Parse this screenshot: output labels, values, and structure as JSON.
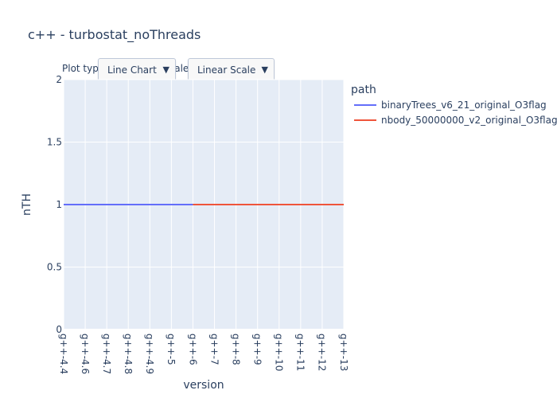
{
  "title": "c++ - turbostat_noThreads",
  "controls": {
    "plot_type_label": "Plot type:",
    "scale_label": "Scale:",
    "plot_type_value": "Line Chart",
    "scale_value": "Linear Scale",
    "arrow_icon": "triangle-down-icon"
  },
  "legend": {
    "title": "path"
  },
  "chart_data": {
    "type": "line",
    "title": "c++ - turbostat_noThreads",
    "xlabel": "version",
    "ylabel": "nTH",
    "categories": [
      "g++-4.4",
      "g++-4.6",
      "g++-4.7",
      "g++-4.8",
      "g++-4.9",
      "g++-5",
      "g++-6",
      "g++-7",
      "g++-8",
      "g++-9",
      "g++-10",
      "g++-11",
      "g++-12",
      "g++-13"
    ],
    "ylim": [
      0,
      2
    ],
    "yticks": [
      0,
      0.5,
      1,
      1.5,
      2
    ],
    "ytick_labels": [
      "0",
      "0.5",
      "1",
      "1.5",
      "2"
    ],
    "grid": true,
    "legend_position": "right",
    "series": [
      {
        "name": "binaryTrees_v6_21_original_O3flag",
        "color": "#636efa",
        "x": [
          "g++-4.4",
          "g++-4.6",
          "g++-4.7",
          "g++-4.8",
          "g++-4.9",
          "g++-5",
          "g++-6"
        ],
        "y": [
          1,
          1,
          1,
          1,
          1,
          1,
          1
        ]
      },
      {
        "name": "nbody_50000000_v2_original_O3flag",
        "color": "#ef553b",
        "x": [
          "g++-6",
          "g++-7",
          "g++-8",
          "g++-9",
          "g++-10",
          "g++-11",
          "g++-12",
          "g++-13"
        ],
        "y": [
          1,
          1,
          1,
          1,
          1,
          1,
          1,
          1
        ]
      }
    ]
  }
}
